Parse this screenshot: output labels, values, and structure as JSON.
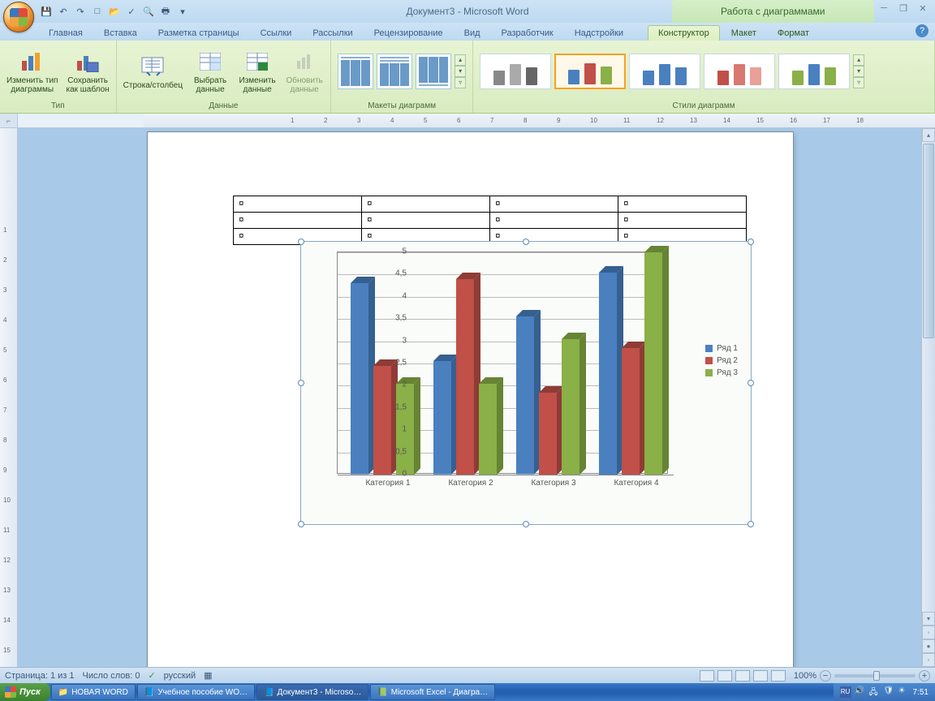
{
  "titlebar": {
    "doc_title": "Документ3 - Microsoft Word",
    "context_title": "Работа с диаграммами"
  },
  "tabs": {
    "home": "Главная",
    "insert": "Вставка",
    "layout": "Разметка страницы",
    "refs": "Ссылки",
    "mail": "Рассылки",
    "review": "Рецензирование",
    "view": "Вид",
    "dev": "Разработчик",
    "addins": "Надстройки",
    "design": "Конструктор",
    "chlayout": "Макет",
    "format": "Формат"
  },
  "ribbon": {
    "type_group": "Тип",
    "change_type": "Изменить тип\nдиаграммы",
    "save_template": "Сохранить\nкак шаблон",
    "data_group": "Данные",
    "switch_rc": "Строка/столбец",
    "select_data": "Выбрать\nданные",
    "edit_data": "Изменить\nданные",
    "refresh": "Обновить\nданные",
    "layouts_group": "Макеты диаграмм",
    "styles_group": "Стили диаграмм",
    "style_palettes": [
      [
        "#888",
        "#aaa",
        "#666"
      ],
      [
        "#4a80c0",
        "#c05048",
        "#8ab048"
      ],
      [
        "#4a80c0",
        "#4a80c0",
        "#4a80c0"
      ],
      [
        "#c05048",
        "#d87870",
        "#e8a098"
      ],
      [
        "#8ab048",
        "#4a80c0",
        "#8ab048"
      ]
    ]
  },
  "chart": {
    "type": "bar",
    "categories": [
      "Категория 1",
      "Категория 2",
      "Категория 3",
      "Категория 4"
    ],
    "series": [
      {
        "name": "Ряд 1",
        "color": "#4a80c0",
        "shade": "#35608f",
        "values": [
          4.3,
          2.55,
          3.55,
          4.55
        ]
      },
      {
        "name": "Ряд 2",
        "color": "#c05048",
        "shade": "#8e3c36",
        "values": [
          2.45,
          4.4,
          1.85,
          2.85
        ]
      },
      {
        "name": "Ряд 3",
        "color": "#8ab048",
        "shade": "#668434",
        "values": [
          2.05,
          2.05,
          3.05,
          5.0
        ]
      }
    ],
    "ylim": [
      0,
      5
    ],
    "ytick_step": 0.5,
    "yticks": [
      "0",
      "0,5",
      "1",
      "1,5",
      "2",
      "2,5",
      "3",
      "3,5",
      "4",
      "4,5",
      "5"
    ],
    "plot_bg": "#ffffff",
    "grid_color": "#bbbbbb",
    "legend_labels": [
      "Ряд 1",
      "Ряд 2",
      "Ряд 3"
    ]
  },
  "table": {
    "rows": 3,
    "cols": 4,
    "cell_mark": "¤"
  },
  "statusbar": {
    "page": "Страница: 1 из 1",
    "words": "Число слов: 0",
    "lang": "русский",
    "zoom": "100%"
  },
  "taskbar": {
    "start": "Пуск",
    "items": [
      {
        "label": "НОВАЯ WORD",
        "icon": "📁"
      },
      {
        "label": "Учебное пособие WO…",
        "icon": "📘"
      },
      {
        "label": "Документ3 - Microso…",
        "icon": "📘",
        "active": true
      },
      {
        "label": "Microsoft Excel - Диагра…",
        "icon": "📗"
      }
    ],
    "lang": "RU",
    "time": "7:51"
  }
}
